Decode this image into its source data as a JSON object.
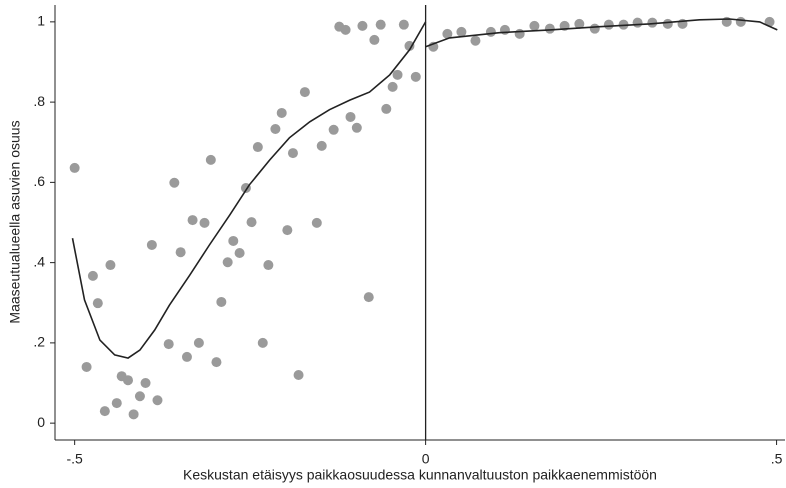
{
  "chart_data": {
    "type": "scatter",
    "x_label": "Keskustan etäisyys paikkaosuudessa kunnanvaltuuston paikkaenemmistöön",
    "y_label": "Maaseutualueella asuvien osuus",
    "xlim": [
      -0.528,
      0.512
    ],
    "ylim": [
      -0.042,
      1.042
    ],
    "xticks": [
      {
        "value": -0.5,
        "label": "-.5"
      },
      0,
      {
        "value": 0.5,
        "label": ".5"
      }
    ],
    "yticks": [
      0,
      {
        "value": 0.2,
        "label": ".2"
      },
      {
        "value": 0.4,
        "label": ".4"
      },
      {
        "value": 0.6,
        "label": ".6"
      },
      {
        "value": 0.8,
        "label": ".8"
      },
      1
    ],
    "cutoff": 0,
    "points": {
      "color": "#9a9a9a",
      "x": [
        -0.5,
        -0.483,
        -0.474,
        -0.467,
        -0.457,
        -0.449,
        -0.44,
        -0.433,
        -0.424,
        -0.416,
        -0.407,
        -0.399,
        -0.39,
        -0.382,
        -0.366,
        -0.358,
        -0.349,
        -0.34,
        -0.332,
        -0.323,
        -0.315,
        -0.306,
        -0.298,
        -0.291,
        -0.282,
        -0.274,
        -0.265,
        -0.256,
        -0.248,
        -0.239,
        -0.232,
        -0.224,
        -0.214,
        -0.205,
        -0.197,
        -0.189,
        -0.181,
        -0.172,
        -0.155,
        -0.148,
        -0.131,
        -0.123,
        -0.114,
        -0.107,
        -0.098,
        -0.09,
        -0.081,
        -0.073,
        -0.064,
        -0.056,
        -0.047,
        -0.04,
        -0.031,
        -0.023,
        -0.014,
        0.011,
        0.031,
        0.051,
        0.071,
        0.093,
        0.113,
        0.134,
        0.155,
        0.177,
        0.198,
        0.219,
        0.241,
        0.261,
        0.282,
        0.302,
        0.323,
        0.345,
        0.366,
        0.429,
        0.449,
        0.49
      ],
      "y": [
        0.636,
        0.14,
        0.367,
        0.299,
        0.03,
        0.394,
        0.05,
        0.117,
        0.107,
        0.022,
        0.067,
        0.1,
        0.444,
        0.057,
        0.197,
        0.599,
        0.426,
        0.165,
        0.506,
        0.2,
        0.499,
        0.656,
        0.152,
        0.302,
        0.401,
        0.454,
        0.424,
        0.586,
        0.501,
        0.688,
        0.2,
        0.394,
        0.733,
        0.773,
        0.481,
        0.673,
        0.12,
        0.825,
        0.499,
        0.691,
        0.731,
        0.988,
        0.98,
        0.763,
        0.736,
        0.99,
        0.314,
        0.955,
        0.993,
        0.783,
        0.838,
        0.868,
        0.993,
        0.94,
        0.863,
        0.938,
        0.97,
        0.975,
        0.953,
        0.975,
        0.98,
        0.97,
        0.99,
        0.983,
        0.99,
        0.995,
        0.983,
        0.993,
        0.993,
        0.998,
        0.998,
        0.995,
        0.995,
        1.0,
        1.0,
        1.0
      ]
    },
    "fits": [
      {
        "color": "#222222",
        "x": [
          -0.503,
          -0.486,
          -0.464,
          -0.443,
          -0.424,
          -0.407,
          -0.386,
          -0.365,
          -0.336,
          -0.308,
          -0.279,
          -0.251,
          -0.222,
          -0.194,
          -0.165,
          -0.137,
          -0.108,
          -0.08,
          -0.051,
          -0.023,
          0
        ],
        "y": [
          0.461,
          0.307,
          0.207,
          0.17,
          0.162,
          0.182,
          0.232,
          0.294,
          0.369,
          0.444,
          0.519,
          0.594,
          0.656,
          0.711,
          0.751,
          0.781,
          0.805,
          0.825,
          0.868,
          0.93,
          1.0
        ]
      },
      {
        "color": "#222222",
        "x": [
          0,
          0.034,
          0.105,
          0.177,
          0.248,
          0.319,
          0.39,
          0.433,
          0.476,
          0.501
        ],
        "y": [
          0.938,
          0.96,
          0.973,
          0.98,
          0.988,
          0.995,
          1.005,
          1.007,
          1.0,
          0.98
        ]
      }
    ]
  }
}
